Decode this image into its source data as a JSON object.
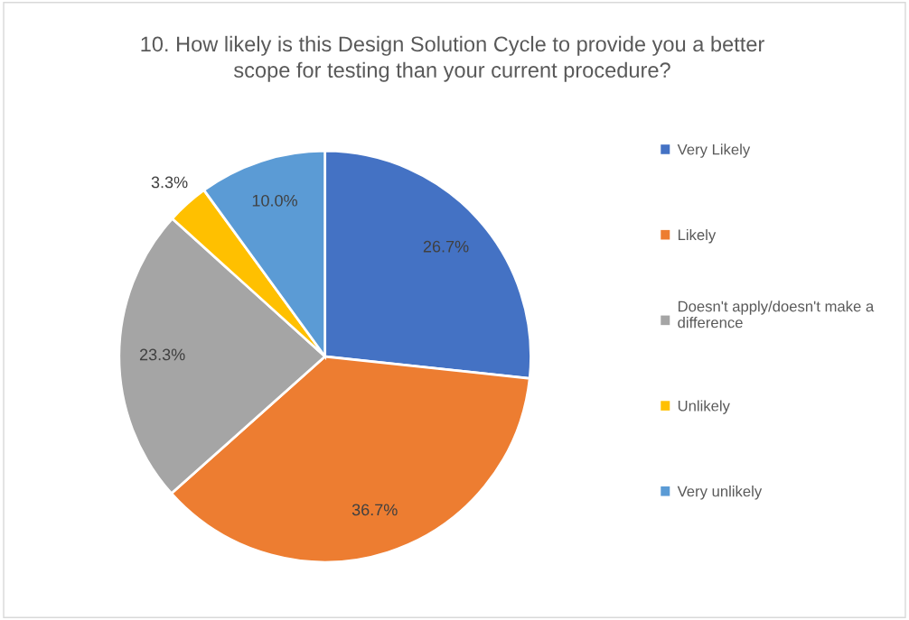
{
  "chart_data": {
    "type": "pie",
    "title": "10. How likely is this Design Solution Cycle to provide you a better scope for testing than your current procedure?",
    "categories": [
      "Very Likely",
      "Likely",
      "Doesn't apply/doesn't make a difference",
      "Unlikely",
      "Very unlikely"
    ],
    "values": [
      26.7,
      36.7,
      23.3,
      3.3,
      10.0
    ],
    "value_labels": [
      "26.7%",
      "36.7%",
      "23.3%",
      "3.3%",
      "10.0%"
    ],
    "colors": [
      "#4472c4",
      "#ed7d31",
      "#a5a5a5",
      "#ffc000",
      "#5b9bd5"
    ],
    "legend": "right"
  }
}
